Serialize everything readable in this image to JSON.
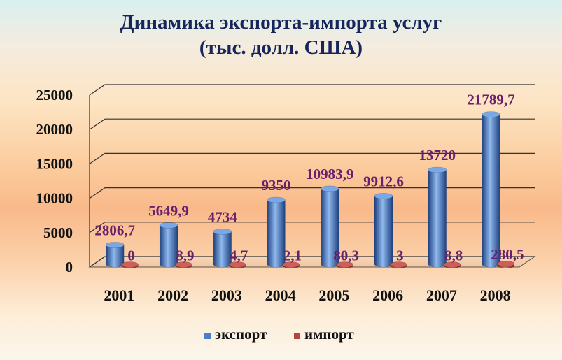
{
  "chart_data": {
    "type": "bar",
    "title": "Динамика экспорта-импорта услуг",
    "subtitle": "(тыс. долл. США)",
    "categories": [
      "2001",
      "2002",
      "2003",
      "2004",
      "2005",
      "2006",
      "2007",
      "2008"
    ],
    "series": [
      {
        "name": "экспорт",
        "values": [
          2806.7,
          5649.9,
          4734,
          9350,
          10983.9,
          9912.6,
          13720,
          21789.7
        ],
        "labels": [
          "2806,7",
          "5649,9",
          "4734",
          "9350",
          "10983,9",
          "9912,6",
          "13720",
          "21789,7"
        ],
        "color": "#4a7fc8"
      },
      {
        "name": "импорт",
        "values": [
          0,
          8.9,
          4.7,
          2.1,
          80.3,
          3,
          8.8,
          280.5
        ],
        "labels": [
          "0",
          "8,9",
          "4,7",
          "2,1",
          "80,3",
          "3",
          "8,8",
          "280,5"
        ],
        "color": "#b8433e"
      }
    ],
    "y_ticks": [
      0,
      5000,
      10000,
      15000,
      20000,
      25000
    ],
    "y_tick_labels": [
      "0",
      "5000",
      "10000",
      "15000",
      "20000",
      "25000"
    ],
    "ylim": [
      0,
      25000
    ],
    "grid": true,
    "legend_position": "bottom",
    "style": "3d-cylinder",
    "colors": {
      "label": "#6a1f6a",
      "axis_text": "#111111",
      "title": "#16265a"
    }
  }
}
